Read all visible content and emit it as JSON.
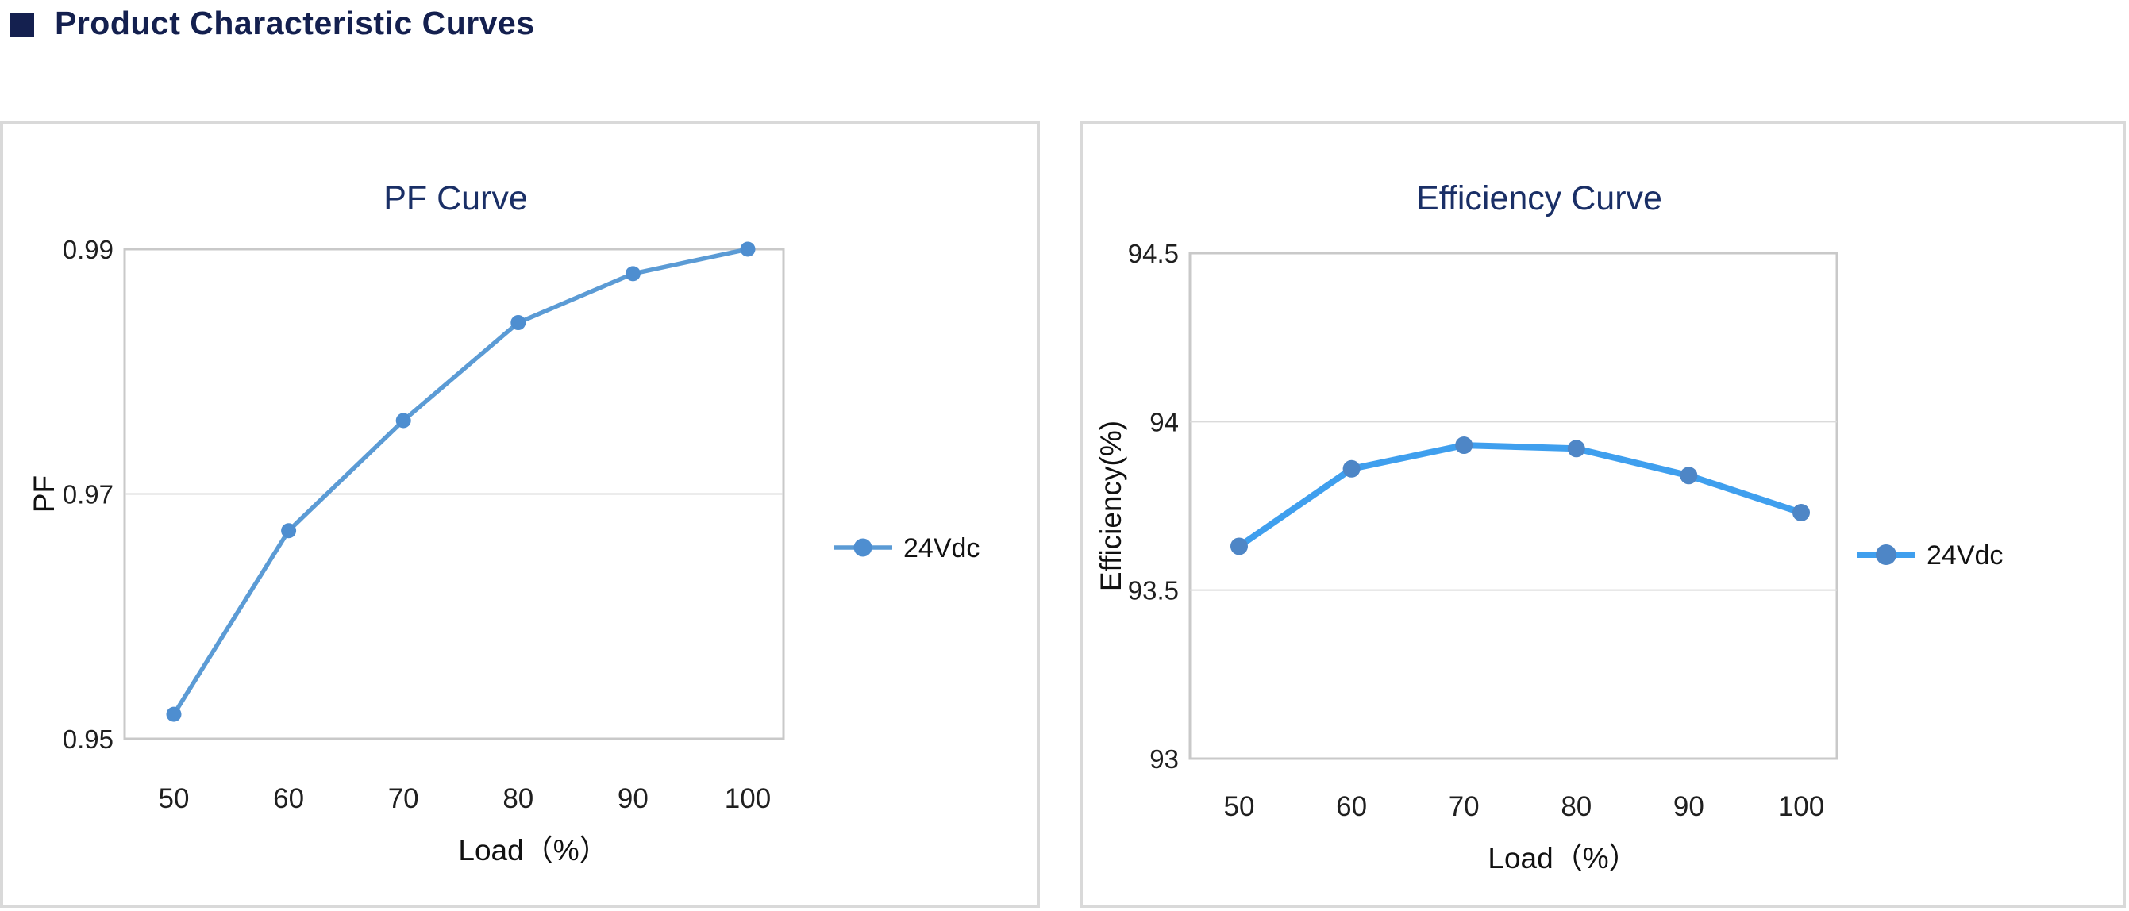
{
  "header": {
    "title": "Product Characteristic Curves",
    "accent_color": "#14204f"
  },
  "chart_data": [
    {
      "type": "line",
      "title": "PF Curve",
      "xlabel": "Load（%）",
      "ylabel": "PF",
      "x": [
        50,
        60,
        70,
        80,
        90,
        100
      ],
      "xtick_labels": [
        "50",
        "60",
        "70",
        "80",
        "90",
        "100"
      ],
      "series": [
        {
          "name": "24Vdc",
          "values": [
            0.952,
            0.967,
            0.976,
            0.984,
            0.988,
            0.99
          ]
        }
      ],
      "ylim": [
        0.95,
        0.99
      ],
      "yticks": [
        0.95,
        0.97,
        0.99
      ],
      "ytick_labels": [
        "0.95",
        "0.97",
        "0.99"
      ],
      "gridlines_y": [
        0.97
      ],
      "grid": "horizontal",
      "legend_position": "right",
      "legend_label": "24Vdc",
      "title_color": "#1a2f66",
      "line_color": "#5b9bd5",
      "marker_color": "#4e8ed0"
    },
    {
      "type": "line",
      "title": "Efficiency Curve",
      "xlabel": "Load（%）",
      "ylabel": "Efficiency(%)",
      "x": [
        50,
        60,
        70,
        80,
        90,
        100
      ],
      "xtick_labels": [
        "50",
        "60",
        "70",
        "80",
        "90",
        "100"
      ],
      "series": [
        {
          "name": "24Vdc",
          "values": [
            93.63,
            93.86,
            93.93,
            93.92,
            93.84,
            93.73
          ]
        }
      ],
      "ylim": [
        93,
        94.5
      ],
      "yticks": [
        93,
        93.5,
        94,
        94.5
      ],
      "ytick_labels": [
        "93",
        "93.5",
        "94",
        "94.5"
      ],
      "gridlines_y": [
        93.5,
        94
      ],
      "grid": "horizontal",
      "legend_position": "right",
      "legend_label": "24Vdc",
      "title_color": "#1a2f66",
      "line_color": "#3f9fee",
      "marker_color": "#4e86c6"
    }
  ]
}
